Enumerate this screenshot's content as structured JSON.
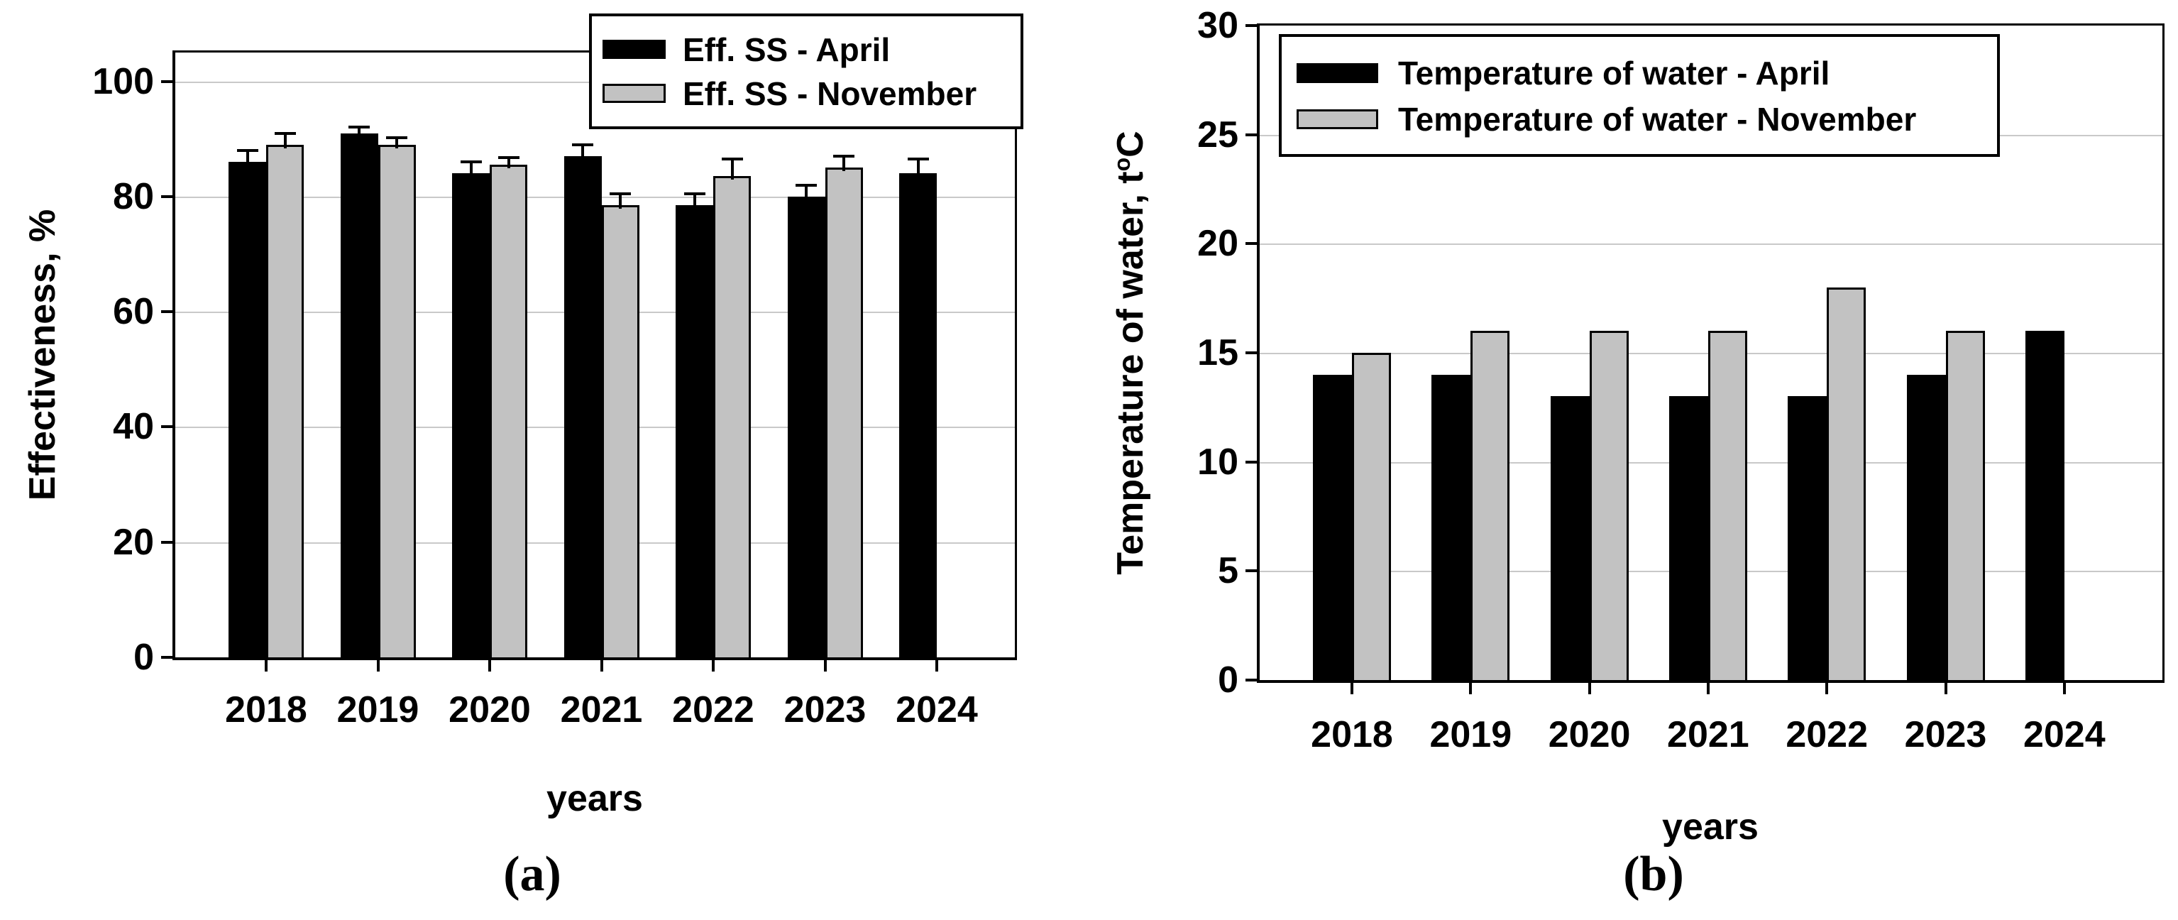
{
  "figure": {
    "captions": {
      "a": "(a)",
      "b": "(b)"
    }
  },
  "chart_data": [
    {
      "id": "a",
      "type": "bar",
      "title": "",
      "xlabel": "years",
      "ylabel": "Effectiveness, %",
      "ylim": [
        0,
        105
      ],
      "yticks": [
        0,
        20,
        40,
        60,
        80,
        100
      ],
      "grid": true,
      "legend_position": "top-right",
      "categories": [
        "2018",
        "2019",
        "2020",
        "2021",
        "2022",
        "2023",
        "2024"
      ],
      "series": [
        {
          "name": "Eff. SS - April",
          "color": "#000000",
          "values": [
            86,
            91,
            84,
            87,
            78.5,
            80,
            84
          ],
          "errors": [
            2,
            1,
            2,
            2,
            2,
            2,
            2.5
          ]
        },
        {
          "name": "Eff. SS - November",
          "color": "#c2c2c2",
          "values": [
            89,
            89,
            85.5,
            78.5,
            83.5,
            85,
            null
          ],
          "errors": [
            2,
            1.2,
            1.3,
            2,
            3,
            2,
            null
          ]
        }
      ]
    },
    {
      "id": "b",
      "type": "bar",
      "title": "",
      "xlabel": "years",
      "ylabel": "Temperature of water, t°C",
      "ylabel_parts": {
        "prefix": "Temperature of water, t",
        "sup": "o",
        "suffix": "C"
      },
      "ylim": [
        0,
        30
      ],
      "yticks": [
        0,
        5,
        10,
        15,
        20,
        25,
        30
      ],
      "grid": true,
      "legend_position": "top-left",
      "categories": [
        "2018",
        "2019",
        "2020",
        "2021",
        "2022",
        "2023",
        "2024"
      ],
      "series": [
        {
          "name": "Temperature of water - April",
          "color": "#000000",
          "values": [
            14,
            14,
            13,
            13,
            13,
            14,
            16
          ]
        },
        {
          "name": "Temperature of water - November",
          "color": "#c2c2c2",
          "values": [
            15,
            16,
            16,
            16,
            18,
            16,
            null
          ]
        }
      ]
    }
  ]
}
